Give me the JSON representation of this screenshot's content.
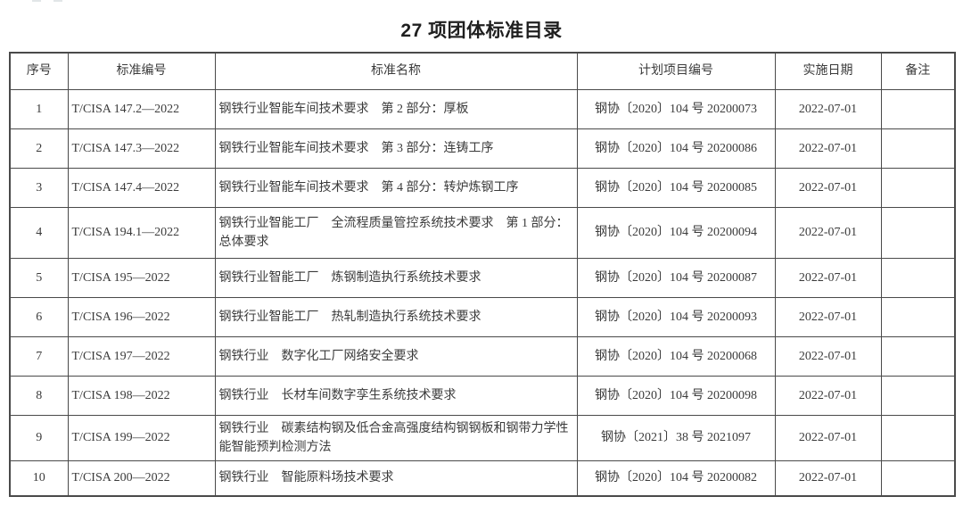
{
  "page": {
    "title": "27 项团体标准目录"
  },
  "colors": {
    "border": "#4a4a4a",
    "text": "#3b3b3b",
    "title": "#1f1f1f",
    "background": "#ffffff"
  },
  "table": {
    "headers": [
      "序号",
      "标准编号",
      "标准名称",
      "计划项目编号",
      "实施日期",
      "备注"
    ],
    "rows": [
      {
        "no": "1",
        "std": "T/CISA 147.2—2022",
        "name": "钢铁行业智能车间技术要求　第 2 部分：厚板",
        "plan": "钢协〔2020〕104 号 20200073",
        "date": "2022-07-01",
        "note": ""
      },
      {
        "no": "2",
        "std": "T/CISA 147.3—2022",
        "name": "钢铁行业智能车间技术要求　第 3 部分：连铸工序",
        "plan": "钢协〔2020〕104 号 20200086",
        "date": "2022-07-01",
        "note": ""
      },
      {
        "no": "3",
        "std": "T/CISA 147.4—2022",
        "name": "钢铁行业智能车间技术要求　第 4 部分：转炉炼钢工序",
        "plan": "钢协〔2020〕104 号 20200085",
        "date": "2022-07-01",
        "note": ""
      },
      {
        "no": "4",
        "std": "T/CISA 194.1—2022",
        "name": "钢铁行业智能工厂　全流程质量管控系统技术要求　第 1 部分：总体要求",
        "plan": "钢协〔2020〕104 号 20200094",
        "date": "2022-07-01",
        "note": ""
      },
      {
        "no": "5",
        "std": "T/CISA 195—2022",
        "name": "钢铁行业智能工厂　炼钢制造执行系统技术要求",
        "plan": "钢协〔2020〕104 号 20200087",
        "date": "2022-07-01",
        "note": ""
      },
      {
        "no": "6",
        "std": "T/CISA 196—2022",
        "name": "钢铁行业智能工厂　热轧制造执行系统技术要求",
        "plan": "钢协〔2020〕104 号 20200093",
        "date": "2022-07-01",
        "note": ""
      },
      {
        "no": "7",
        "std": "T/CISA 197—2022",
        "name": "钢铁行业　数字化工厂网络安全要求",
        "plan": "钢协〔2020〕104 号 20200068",
        "date": "2022-07-01",
        "note": ""
      },
      {
        "no": "8",
        "std": "T/CISA 198—2022",
        "name": "钢铁行业　长材车间数字孪生系统技术要求",
        "plan": "钢协〔2020〕104 号 20200098",
        "date": "2022-07-01",
        "note": ""
      },
      {
        "no": "9",
        "std": "T/CISA 199—2022",
        "name": "钢铁行业　碳素结构钢及低合金高强度结构钢钢板和钢带力学性能智能预判检测方法",
        "plan": "钢协〔2021〕38 号 2021097",
        "date": "2022-07-01",
        "note": ""
      },
      {
        "no": "10",
        "std": "T/CISA 200—2022",
        "name": "钢铁行业　智能原料场技术要求",
        "plan": "钢协〔2020〕104 号 20200082",
        "date": "2022-07-01",
        "note": ""
      }
    ]
  }
}
